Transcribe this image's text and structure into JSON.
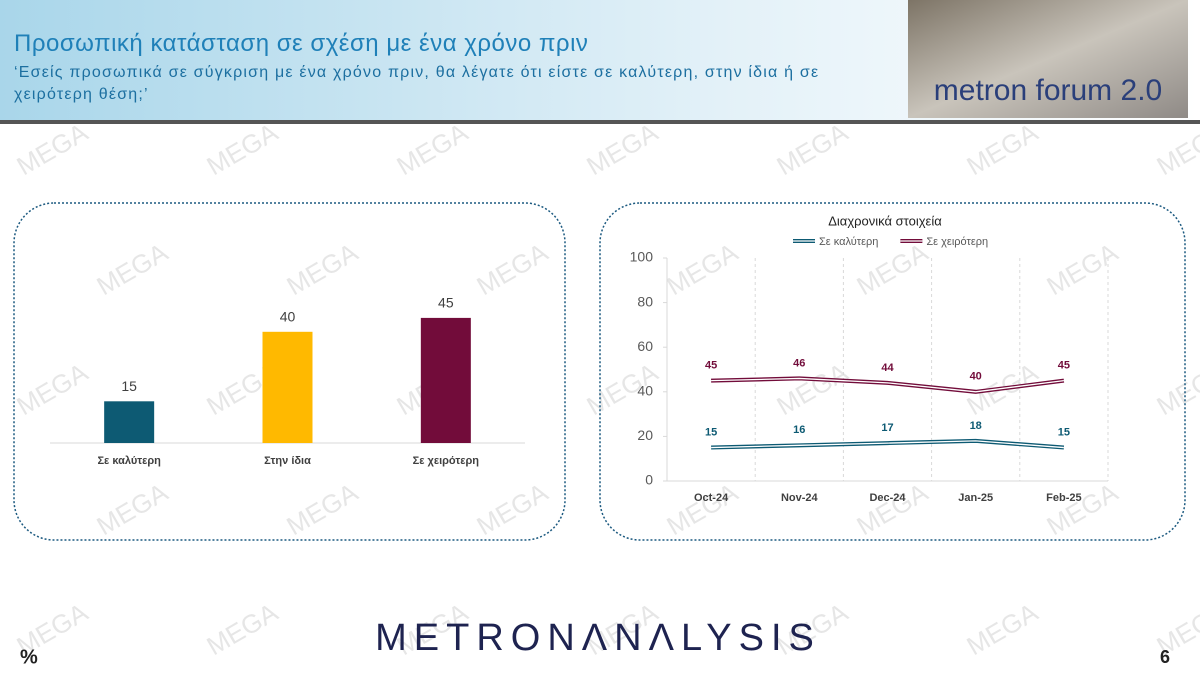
{
  "header": {
    "title": "Προσωπική κατάσταση σε σχέση με ένα χρόνο πριν",
    "subtitle": "‘Εσείς προσωπικά σε σύγκριση με ένα χρόνο πριν, θα λέγατε ότι είστε σε καλύτερη, στην ίδια ή σε χειρότερη θέση;’",
    "logo": "metron forum 2.0"
  },
  "watermark": "MEGA",
  "chart_data": [
    {
      "type": "bar",
      "categories": [
        "Σε καλύτερη",
        "Στην ίδια",
        "Σε χειρότερη"
      ],
      "values": [
        15,
        40,
        45
      ],
      "colors": [
        "#0d5a73",
        "#ffb900",
        "#720c3a"
      ]
    },
    {
      "type": "line",
      "title": "Διαχρονικά στοιχεία",
      "categories": [
        "Oct-24",
        "Nov-24",
        "Dec-24",
        "Jan-25",
        "Feb-25"
      ],
      "series": [
        {
          "name": "Σε καλύτερη",
          "color": "#0d5a73",
          "values": [
            15,
            16,
            17,
            18,
            15
          ]
        },
        {
          "name": "Σε χειρότερη",
          "color": "#720c3a",
          "values": [
            45,
            46,
            44,
            40,
            45
          ]
        }
      ],
      "ylim": [
        0,
        100
      ],
      "yticks": [
        0,
        20,
        40,
        60,
        80,
        100
      ],
      "legend": "top"
    }
  ],
  "footer": {
    "brand": "METRONΛNΛLYSIS",
    "unit": "%",
    "page": "6"
  }
}
